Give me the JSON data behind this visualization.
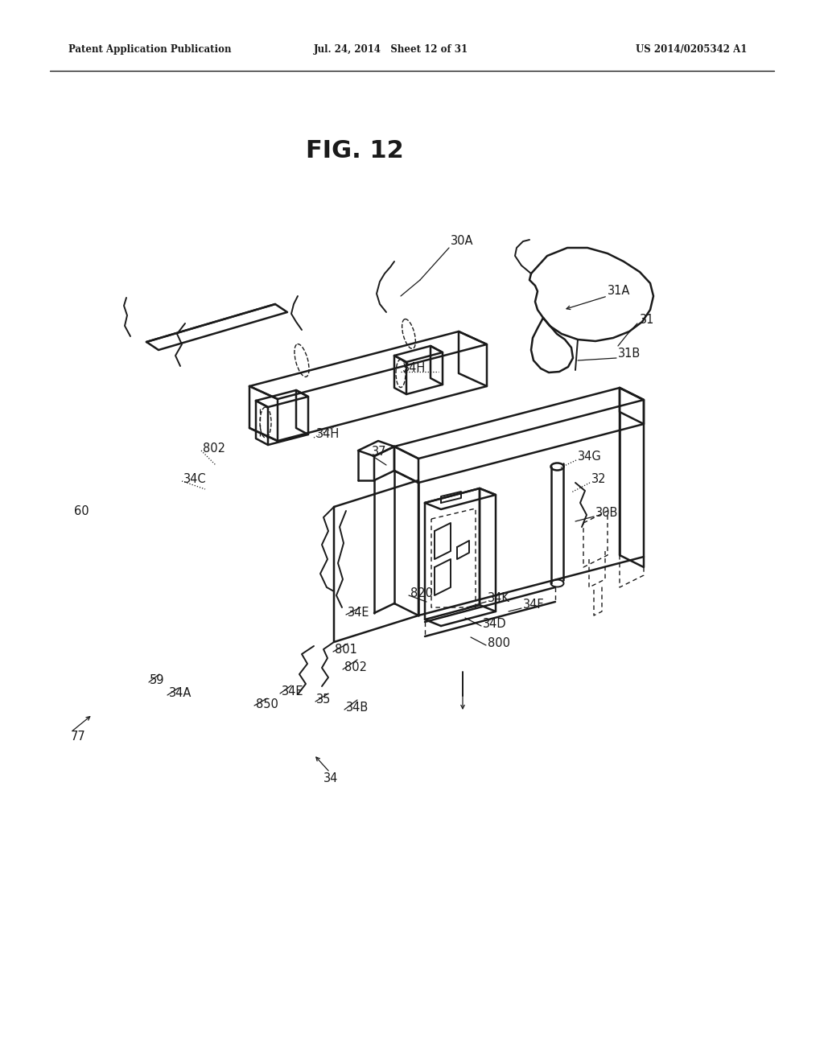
{
  "bg_color": "#ffffff",
  "line_color": "#1a1a1a",
  "header_left": "Patent Application Publication",
  "header_center": "Jul. 24, 2014   Sheet 12 of 31",
  "header_right": "US 2014/0205342 A1",
  "fig_label": "FIG. 12"
}
